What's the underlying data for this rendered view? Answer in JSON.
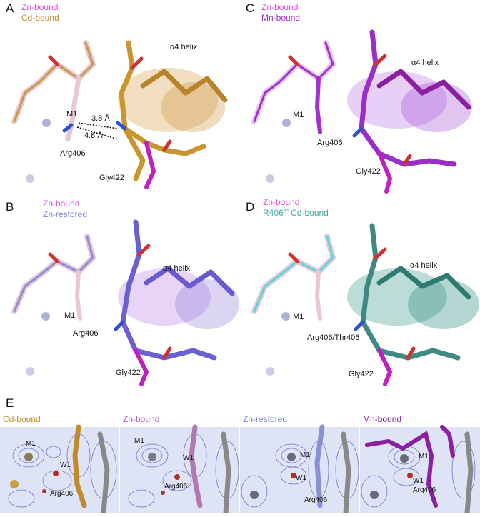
{
  "panels": [
    {
      "id": "A",
      "legend": [
        "Zn-bound",
        "Cd-bound"
      ],
      "legend_colors": [
        "#d84fd8",
        "#c08a2a"
      ],
      "labels": {
        "helix": "α4 helix",
        "m1": "M1",
        "d1": "3.8 Å",
        "d2": "4.8 Å",
        "arg": "Arg406",
        "gly": "Gly422"
      }
    },
    {
      "id": "B",
      "legend": [
        "Zn-bound",
        "Zn-restored"
      ],
      "legend_colors": [
        "#d84fd8",
        "#7d86d6"
      ],
      "labels": {
        "helix": "α4 helix",
        "m1": "M1",
        "arg": "Arg406",
        "gly": "Gly422"
      }
    },
    {
      "id": "C",
      "legend": [
        "Zn-bound",
        "Mn-bound"
      ],
      "legend_colors": [
        "#d84fd8",
        "#9a2ec8"
      ],
      "labels": {
        "helix": "α4 helix",
        "m1": "M1",
        "arg": "Arg406",
        "gly": "Gly422"
      }
    },
    {
      "id": "D",
      "legend": [
        "Zn-bound",
        "R406T Cd-bound"
      ],
      "legend_colors": [
        "#d84fd8",
        "#47a8a0"
      ],
      "labels": {
        "helix": "α4 helix",
        "m1": "M1",
        "arg": "Arg406/Thr406",
        "gly": "Gly422"
      }
    }
  ],
  "panel_e": {
    "id": "E",
    "subpanels": [
      {
        "title": "Cd-bound",
        "color": "#c08a2a",
        "labels": {
          "m1": "M1",
          "w1": "W1",
          "arg": "Arg406"
        }
      },
      {
        "title": "Zn-bound",
        "color": "#b05fb0",
        "labels": {
          "m1": "M1",
          "w1": "W1",
          "arg": "Arg406"
        }
      },
      {
        "title": "Zn-restored",
        "color": "#7d86d6",
        "labels": {
          "m1": "M1",
          "w1": "W1",
          "arg": "Arg406"
        }
      },
      {
        "title": "Mn-bound",
        "color": "#8a1fa0",
        "labels": {
          "m1": "M1",
          "w1": "W1",
          "arg": "Arg406"
        }
      }
    ]
  }
}
